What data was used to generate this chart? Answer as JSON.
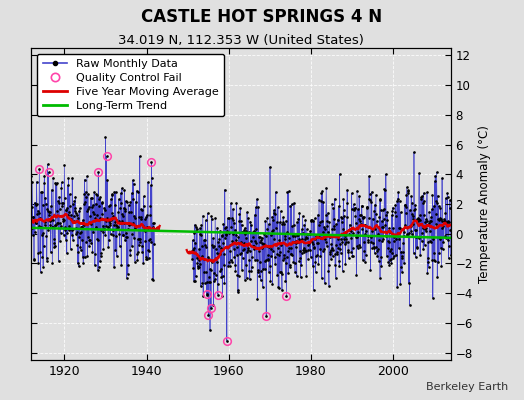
{
  "title": "CASTLE HOT SPRINGS 4 N",
  "subtitle": "34.019 N, 112.353 W (United States)",
  "ylabel": "Temperature Anomaly (°C)",
  "attribution": "Berkeley Earth",
  "xlim": [
    1912,
    2014
  ],
  "ylim": [
    -8.5,
    12.5
  ],
  "yticks": [
    -8,
    -6,
    -4,
    -2,
    0,
    2,
    4,
    6,
    8,
    10,
    12
  ],
  "xticks": [
    1920,
    1940,
    1960,
    1980,
    2000
  ],
  "background_color": "#e0e0e0",
  "plot_bg_color": "#e0e0e0",
  "raw_line_color": "#4444cc",
  "raw_dot_color": "#000000",
  "moving_avg_color": "#dd0000",
  "trend_color": "#00bb00",
  "qc_fail_color": "#ff44aa",
  "seed": 7,
  "start_year": 1912.0,
  "end_year": 2014.0,
  "n_months": 1224,
  "gap_start": 1942,
  "gap_end": 1951,
  "legend_fontsize": 8,
  "title_fontsize": 12,
  "subtitle_fontsize": 9.5
}
